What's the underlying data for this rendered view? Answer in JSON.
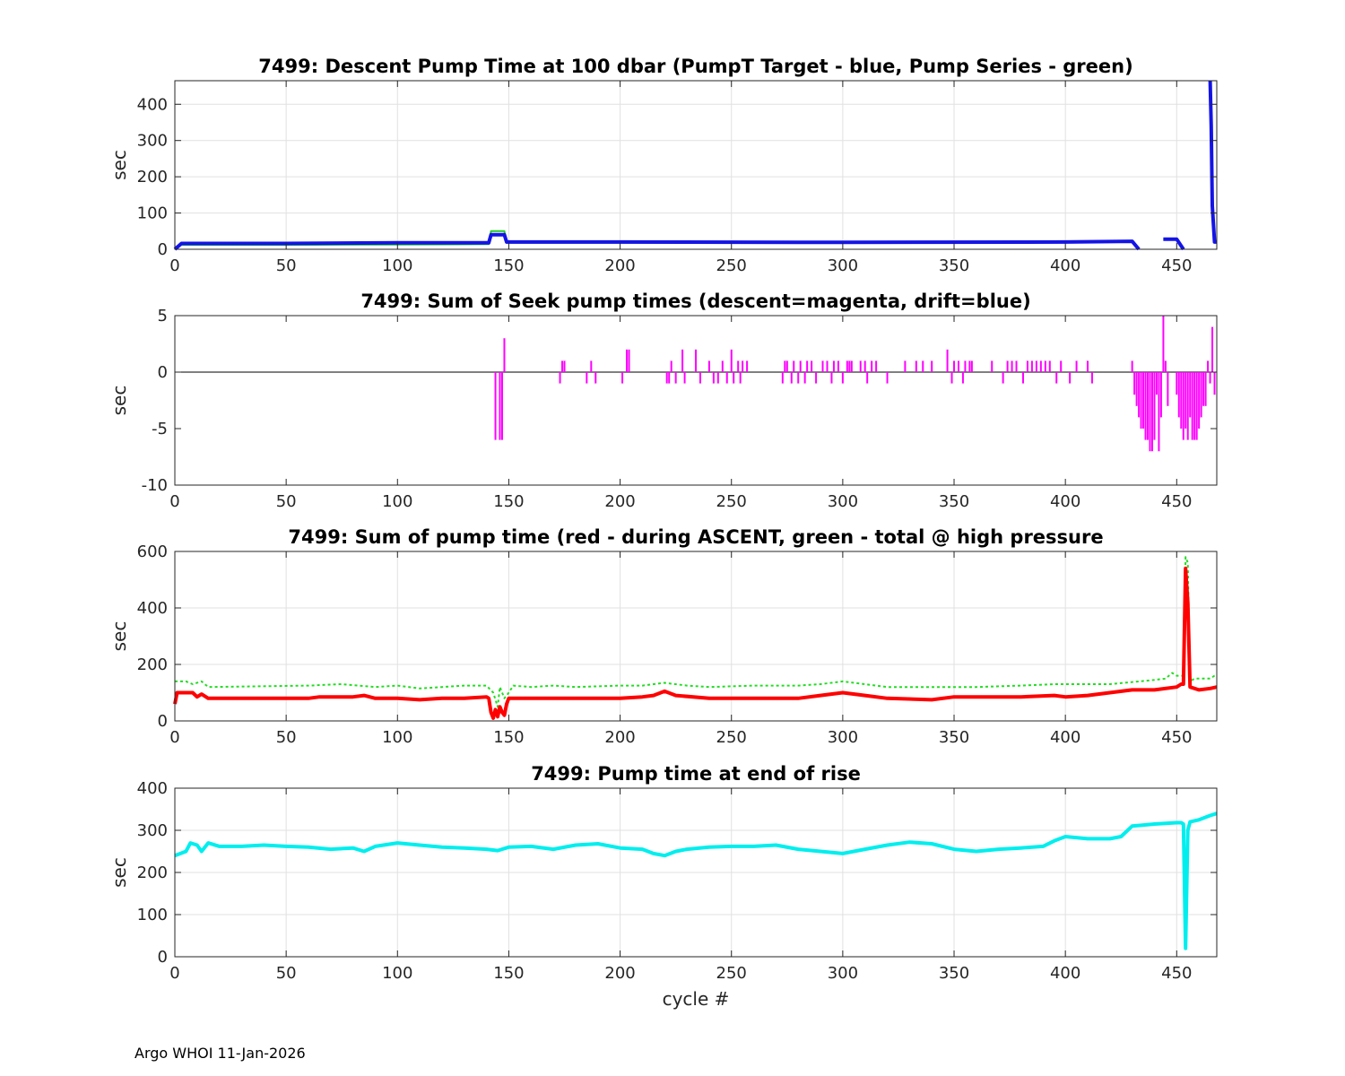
{
  "footer": "Argo WHOI 11-Jan-2026",
  "chart_data": [
    {
      "type": "line",
      "title": "7499: Descent Pump Time at 100 dbar (PumpT Target - blue, Pump Series - green)",
      "xlabel": "",
      "ylabel": "sec",
      "xlim": [
        0,
        468
      ],
      "ylim": [
        0,
        465
      ],
      "xticks": [
        0,
        50,
        100,
        150,
        200,
        250,
        300,
        350,
        400,
        450
      ],
      "yticks": [
        0,
        100,
        200,
        300,
        400
      ],
      "grid": true,
      "series": [
        {
          "name": "Pump Series",
          "color": "#22cc22",
          "dashed": false,
          "width": 2,
          "x": [
            0,
            3,
            50,
            100,
            141,
            142,
            148,
            149,
            200,
            300,
            400,
            430,
            433,
            null,
            444,
            450,
            453
          ],
          "y": [
            5,
            12,
            12,
            13,
            14,
            50,
            50,
            18,
            18,
            18,
            19,
            22,
            0,
            null,
            28,
            28,
            0
          ]
        },
        {
          "name": "PumpT Target",
          "color": "#1414e6",
          "dashed": false,
          "width": 4,
          "x": [
            0,
            3,
            50,
            100,
            141,
            142,
            148,
            149,
            200,
            300,
            400,
            430,
            433,
            null,
            444,
            450,
            453,
            null,
            465,
            465.5,
            466,
            467,
            468
          ],
          "y": [
            0,
            16,
            16,
            18,
            18,
            40,
            40,
            20,
            20,
            19,
            20,
            22,
            0,
            null,
            28,
            28,
            0,
            null,
            465,
            340,
            120,
            20,
            20
          ]
        }
      ]
    },
    {
      "type": "bar",
      "title": "7499: Sum of Seek pump times (descent=magenta, drift=blue)",
      "xlabel": "",
      "ylabel": "sec",
      "xlim": [
        0,
        468
      ],
      "ylim": [
        -10,
        5
      ],
      "xticks": [
        0,
        50,
        100,
        150,
        200,
        250,
        300,
        350,
        400,
        450
      ],
      "yticks": [
        -10,
        -5,
        0,
        5
      ],
      "grid": false,
      "zero_line": true,
      "series": [
        {
          "name": "descent",
          "color": "#ff00ff",
          "x": [
            144,
            146,
            147,
            148,
            173,
            174,
            175,
            185,
            187,
            189,
            201,
            203,
            204,
            221,
            222,
            223,
            225,
            228,
            229,
            234,
            236,
            240,
            242,
            244,
            246,
            248,
            250,
            251,
            253,
            254,
            255,
            257,
            273,
            274,
            275,
            277,
            278,
            280,
            281,
            283,
            284,
            286,
            288,
            291,
            293,
            295,
            296,
            298,
            300,
            302,
            303,
            304,
            308,
            310,
            311,
            313,
            315,
            320,
            328,
            333,
            336,
            340,
            347,
            349,
            350,
            352,
            354,
            355,
            357,
            358,
            367,
            372,
            374,
            376,
            378,
            381,
            383,
            385,
            387,
            389,
            391,
            393,
            396,
            398,
            402,
            405,
            410,
            412,
            430,
            431,
            432,
            433,
            434,
            435,
            436,
            437,
            438,
            439,
            440,
            441,
            442,
            443,
            444,
            445,
            446,
            450,
            451,
            452,
            453,
            454,
            455,
            456,
            457,
            458,
            459,
            460,
            461,
            462,
            463,
            464,
            465,
            466,
            467
          ],
          "values": [
            -6,
            -6,
            -6,
            3,
            -1,
            1,
            1,
            -1,
            1,
            -1,
            -1,
            2,
            2,
            -1,
            -1,
            1,
            -1,
            2,
            -1,
            2,
            -1,
            1,
            -1,
            -1,
            1,
            -1,
            2,
            -1,
            1,
            -1,
            1,
            1,
            -1,
            1,
            1,
            -1,
            1,
            -1,
            1,
            -1,
            1,
            1,
            -1,
            1,
            1,
            -1,
            1,
            1,
            -1,
            1,
            1,
            1,
            1,
            1,
            -1,
            1,
            1,
            -1,
            1,
            1,
            1,
            1,
            2,
            -1,
            1,
            1,
            -1,
            1,
            1,
            1,
            1,
            -1,
            1,
            1,
            1,
            -1,
            1,
            1,
            1,
            1,
            1,
            1,
            -1,
            1,
            -1,
            1,
            1,
            -1,
            1,
            -2,
            -3,
            -4,
            -5,
            -5,
            -6,
            -6,
            -7,
            -7,
            -6,
            -2,
            -7,
            -4,
            5,
            1,
            -3,
            -2,
            -4,
            -5,
            -6,
            -5,
            -6,
            -4,
            -6,
            -6,
            -6,
            -5,
            -4,
            -3,
            -3,
            1,
            -1,
            4,
            -2
          ]
        }
      ]
    },
    {
      "type": "line",
      "title": "7499: Sum of pump time (red - during ASCENT, green - total @ high pressure",
      "xlabel": "",
      "ylabel": "sec",
      "xlim": [
        0,
        468
      ],
      "ylim": [
        0,
        600
      ],
      "xticks": [
        0,
        50,
        100,
        150,
        200,
        250,
        300,
        350,
        400,
        450
      ],
      "yticks": [
        0,
        200,
        400,
        600
      ],
      "grid": true,
      "series": [
        {
          "name": "total @ high pressure",
          "color": "#22dd22",
          "dashed": true,
          "width": 2,
          "x": [
            0,
            5,
            8,
            12,
            15,
            60,
            75,
            90,
            100,
            110,
            120,
            130,
            140,
            143,
            145,
            146,
            148,
            150,
            152,
            160,
            170,
            180,
            200,
            210,
            220,
            230,
            240,
            260,
            280,
            290,
            300,
            320,
            340,
            360,
            380,
            395,
            400,
            420,
            440,
            445,
            448,
            450,
            453,
            454,
            455,
            456,
            458,
            460,
            462,
            465,
            467,
            468
          ],
          "y": [
            140,
            140,
            130,
            140,
            120,
            125,
            130,
            120,
            125,
            115,
            120,
            125,
            125,
            100,
            50,
            120,
            80,
            100,
            125,
            120,
            125,
            120,
            125,
            125,
            135,
            125,
            120,
            125,
            125,
            130,
            140,
            120,
            120,
            120,
            125,
            130,
            130,
            130,
            145,
            150,
            170,
            160,
            160,
            580,
            560,
            140,
            150,
            150,
            150,
            150,
            160,
            160
          ]
        },
        {
          "name": "during ASCENT",
          "color": "#ff0000",
          "dashed": false,
          "width": 4,
          "x": [
            0,
            1,
            2,
            8,
            10,
            12,
            15,
            60,
            65,
            80,
            85,
            90,
            100,
            110,
            120,
            130,
            140,
            141,
            142,
            143,
            144,
            145,
            146,
            147,
            148,
            149,
            150,
            151,
            160,
            170,
            200,
            210,
            215,
            220,
            225,
            240,
            260,
            280,
            290,
            300,
            310,
            320,
            340,
            350,
            360,
            380,
            395,
            400,
            410,
            420,
            430,
            440,
            450,
            452,
            453,
            454,
            455,
            456,
            460,
            465,
            468
          ],
          "y": [
            60,
            100,
            100,
            100,
            85,
            95,
            80,
            80,
            85,
            85,
            90,
            80,
            80,
            75,
            80,
            80,
            85,
            80,
            30,
            10,
            40,
            15,
            50,
            30,
            20,
            60,
            80,
            80,
            80,
            80,
            80,
            85,
            90,
            105,
            90,
            80,
            80,
            80,
            90,
            100,
            90,
            80,
            75,
            85,
            85,
            85,
            90,
            85,
            90,
            100,
            110,
            110,
            120,
            130,
            130,
            540,
            420,
            120,
            110,
            115,
            120
          ]
        }
      ]
    },
    {
      "type": "line",
      "title": "7499: Pump time at end of rise",
      "xlabel": "cycle #",
      "ylabel": "sec",
      "xlim": [
        0,
        468
      ],
      "ylim": [
        0,
        400
      ],
      "xticks": [
        0,
        50,
        100,
        150,
        200,
        250,
        300,
        350,
        400,
        450
      ],
      "yticks": [
        0,
        100,
        200,
        300,
        400
      ],
      "grid": true,
      "series": [
        {
          "name": "end of rise",
          "color": "#00eeee",
          "dashed": false,
          "width": 4,
          "x": [
            0,
            5,
            7,
            10,
            12,
            15,
            20,
            30,
            40,
            50,
            60,
            70,
            80,
            85,
            90,
            100,
            110,
            120,
            130,
            140,
            145,
            150,
            160,
            170,
            180,
            190,
            200,
            210,
            215,
            220,
            225,
            230,
            240,
            250,
            260,
            270,
            280,
            290,
            300,
            310,
            320,
            330,
            340,
            350,
            360,
            370,
            380,
            390,
            395,
            400,
            410,
            420,
            425,
            430,
            440,
            450,
            452,
            453,
            454,
            455,
            456,
            460,
            465,
            468
          ],
          "y": [
            240,
            250,
            270,
            265,
            250,
            270,
            262,
            262,
            265,
            262,
            260,
            255,
            258,
            250,
            262,
            270,
            265,
            260,
            258,
            255,
            252,
            260,
            262,
            255,
            265,
            268,
            258,
            255,
            245,
            240,
            250,
            255,
            260,
            262,
            262,
            265,
            255,
            250,
            245,
            255,
            265,
            272,
            268,
            255,
            250,
            255,
            258,
            262,
            275,
            285,
            280,
            280,
            285,
            310,
            315,
            318,
            318,
            315,
            20,
            300,
            320,
            325,
            335,
            340
          ]
        }
      ]
    }
  ]
}
